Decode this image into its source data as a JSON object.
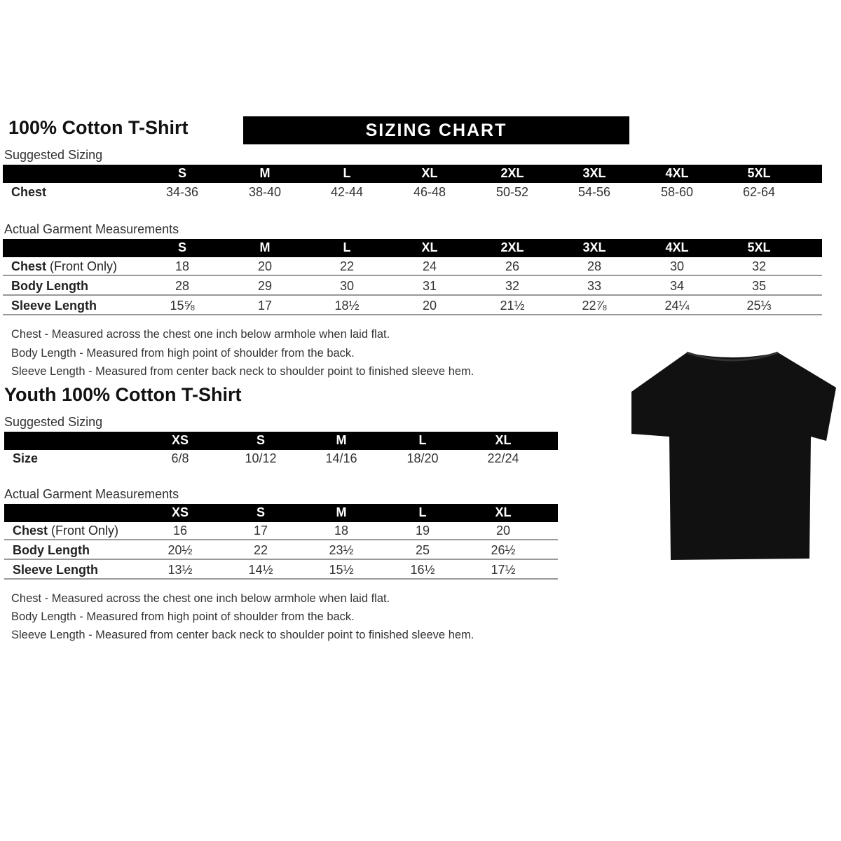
{
  "adult": {
    "title": "100% Cotton T-Shirt",
    "banner": "SIZING CHART",
    "suggested": {
      "label": "Suggested Sizing",
      "sizes": [
        "S",
        "M",
        "L",
        "XL",
        "2XL",
        "3XL",
        "4XL",
        "5XL"
      ],
      "rows": [
        {
          "label": "Chest",
          "values": [
            "34-36",
            "38-40",
            "42-44",
            "46-48",
            "50-52",
            "54-56",
            "58-60",
            "62-64"
          ]
        }
      ]
    },
    "actual": {
      "label": "Actual Garment Measurements",
      "sizes": [
        "S",
        "M",
        "L",
        "XL",
        "2XL",
        "3XL",
        "4XL",
        "5XL"
      ],
      "rows": [
        {
          "label": "Chest",
          "label_note": "(Front Only)",
          "values": [
            "18",
            "20",
            "22",
            "24",
            "26",
            "28",
            "30",
            "32"
          ]
        },
        {
          "label": "Body Length",
          "values": [
            "28",
            "29",
            "30",
            "31",
            "32",
            "33",
            "34",
            "35"
          ]
        },
        {
          "label": "Sleeve Length",
          "values": [
            "15⅝",
            "17",
            "18½",
            "20",
            "21½",
            "22⅞",
            "24¼",
            "25⅓"
          ]
        }
      ]
    },
    "notes": [
      "Chest - Measured across the chest one inch below armhole when laid flat.",
      "Body Length - Measured from high point of shoulder from the back.",
      "Sleeve Length - Measured from center back neck to shoulder point to finished sleeve hem."
    ]
  },
  "youth": {
    "title": "Youth 100% Cotton T-Shirt",
    "suggested": {
      "label": "Suggested Sizing",
      "sizes": [
        "XS",
        "S",
        "M",
        "L",
        "XL"
      ],
      "rows": [
        {
          "label": "Size",
          "values": [
            "6/8",
            "10/12",
            "14/16",
            "18/20",
            "22/24"
          ]
        }
      ]
    },
    "actual": {
      "label": "Actual Garment Measurements",
      "sizes": [
        "XS",
        "S",
        "M",
        "L",
        "XL"
      ],
      "rows": [
        {
          "label": "Chest",
          "label_note": "(Front Only)",
          "values": [
            "16",
            "17",
            "18",
            "19",
            "20"
          ]
        },
        {
          "label": "Body Length",
          "values": [
            "20½",
            "22",
            "23½",
            "25",
            "26½"
          ]
        },
        {
          "label": "Sleeve Length",
          "values": [
            "13½",
            "14½",
            "15½",
            "16½",
            "17½"
          ]
        }
      ]
    },
    "notes": [
      "Chest - Measured across the chest one inch below armhole when laid flat.",
      "Body Length - Measured from high point of shoulder from the back.",
      "Sleeve Length - Measured from center back neck to shoulder point to finished sleeve hem."
    ]
  },
  "shirt_color": "#111111"
}
